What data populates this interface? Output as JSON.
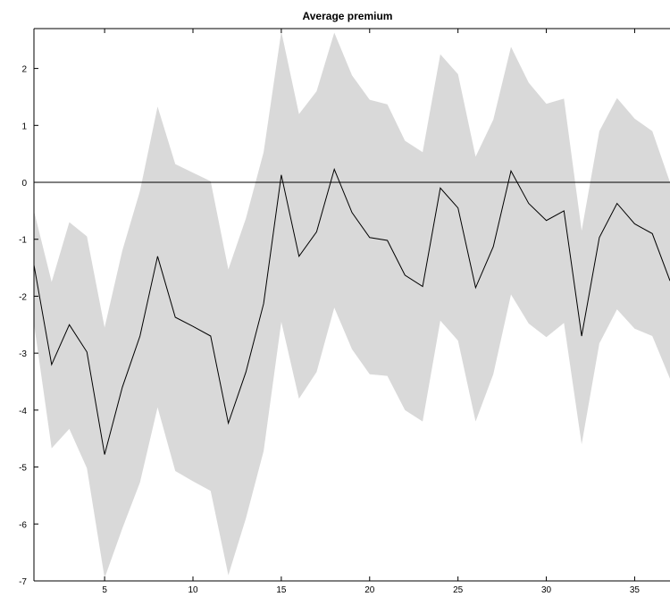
{
  "chart_data": {
    "type": "area",
    "title": "Average premium",
    "xlabel": "",
    "ylabel": "",
    "xlim": [
      1,
      37
    ],
    "ylim": [
      -7,
      2.7
    ],
    "x_ticks": [
      5,
      10,
      15,
      20,
      25,
      30,
      35
    ],
    "y_ticks": [
      -7,
      -6,
      -5,
      -4,
      -3,
      -2,
      -1,
      0,
      1,
      2
    ],
    "grid": false,
    "reference_line": 0,
    "colors": {
      "band": "#d9d9d9",
      "line": "#000000",
      "zero_line": "#000000"
    },
    "x": [
      1,
      2,
      3,
      4,
      5,
      6,
      7,
      8,
      9,
      10,
      11,
      12,
      13,
      14,
      15,
      16,
      17,
      18,
      19,
      20,
      21,
      22,
      23,
      24,
      25,
      26,
      27,
      28,
      29,
      30,
      31,
      32,
      33,
      34,
      35,
      36,
      37
    ],
    "series": [
      {
        "values": [
          -1.45,
          -3.2,
          -2.5,
          -2.98,
          -4.78,
          -3.6,
          -2.7,
          -1.3,
          -2.37,
          -2.53,
          -2.7,
          -4.23,
          -3.33,
          -2.13,
          0.13,
          -1.3,
          -0.87,
          0.23,
          -0.53,
          -0.97,
          -1.02,
          -1.63,
          -1.83,
          -0.1,
          -0.45,
          -1.85,
          -1.13,
          0.2,
          -0.37,
          -0.67,
          -0.5,
          -2.7,
          -0.97,
          -0.37,
          -0.73,
          -0.9,
          -1.73
        ]
      },
      {
        "values": [
          -0.5,
          -1.75,
          -0.7,
          -0.95,
          -2.55,
          -1.2,
          -0.15,
          1.33,
          0.32,
          0.17,
          0.02,
          -1.53,
          -0.63,
          0.53,
          2.65,
          1.2,
          1.6,
          2.63,
          1.88,
          1.45,
          1.37,
          0.73,
          0.53,
          2.25,
          1.9,
          0.45,
          1.1,
          2.38,
          1.75,
          1.38,
          1.47,
          -0.85,
          0.9,
          1.48,
          1.12,
          0.9,
          0.0
        ]
      },
      {
        "values": [
          -2.48,
          -4.67,
          -4.33,
          -5.02,
          -6.95,
          -6.08,
          -5.27,
          -3.95,
          -5.07,
          -5.25,
          -5.42,
          -6.9,
          -5.9,
          -4.72,
          -2.45,
          -3.8,
          -3.33,
          -2.2,
          -2.93,
          -3.37,
          -3.4,
          -4.0,
          -4.2,
          -2.43,
          -2.78,
          -4.2,
          -3.37,
          -1.97,
          -2.48,
          -2.72,
          -2.47,
          -4.6,
          -2.83,
          -2.23,
          -2.57,
          -2.7,
          -3.45
        ]
      }
    ]
  }
}
